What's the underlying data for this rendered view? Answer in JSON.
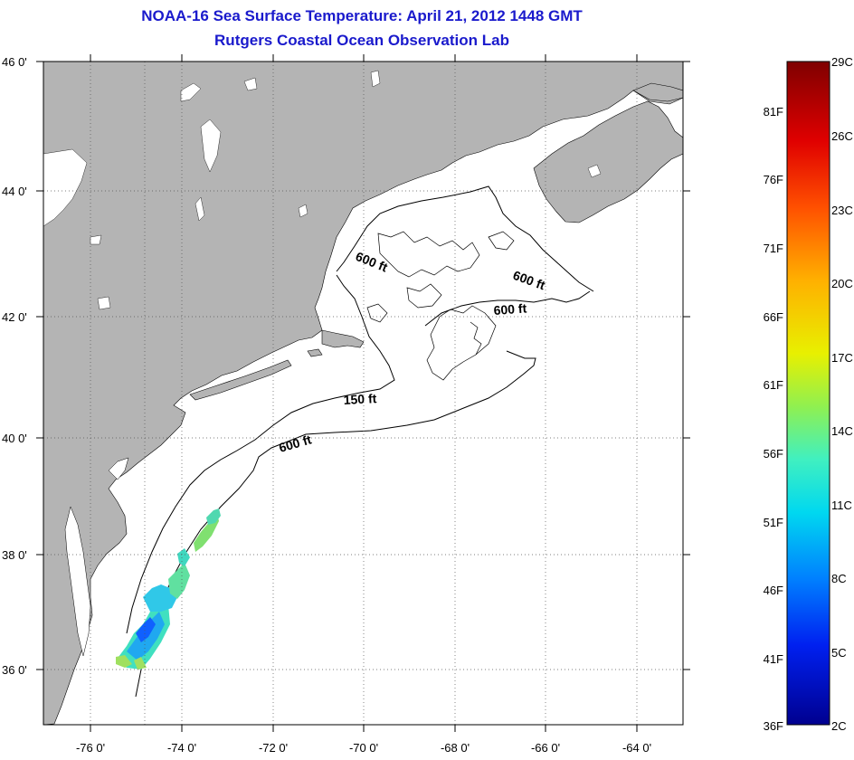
{
  "title": {
    "line1": "NOAA-16 Sea Surface Temperature:  April 21, 2012 1448 GMT",
    "line2": "Rutgers Coastal Ocean Observation Lab"
  },
  "map": {
    "lat_labels": [
      "46 0'",
      "44 0'",
      "42 0'",
      "40 0'",
      "38 0'",
      "36 0'"
    ],
    "lon_labels": [
      "-76 0'",
      "-74 0'",
      "-72 0'",
      "-70 0'",
      "-68 0'",
      "-66 0'",
      "-64 0'"
    ],
    "contour_labels": [
      "600 ft",
      "600 ft",
      "600 ft",
      "150 ft",
      "600 ft"
    ],
    "land_color": "#b4b4b4",
    "ocean_color": "#ffffff"
  },
  "colorbar": {
    "celsius_labels": [
      "29C",
      "26C",
      "23C",
      "20C",
      "17C",
      "14C",
      "11C",
      "8C",
      "5C",
      "2C"
    ],
    "fahrenheit_labels": [
      "81F",
      "76F",
      "71F",
      "66F",
      "61F",
      "56F",
      "51F",
      "46F",
      "41F",
      "36F"
    ],
    "colors": [
      "#7f0000",
      "#ff0000",
      "#ff8000",
      "#ffd000",
      "#c8f020",
      "#40f0c0",
      "#00c8ff",
      "#0060ff",
      "#0000e0",
      "#00008f"
    ]
  }
}
